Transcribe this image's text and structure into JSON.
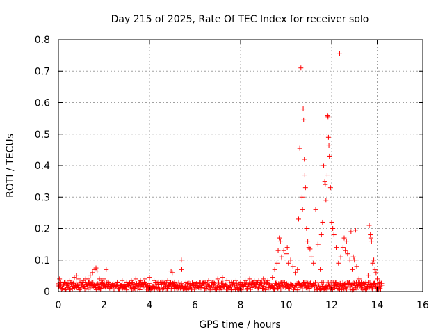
{
  "chart_data": {
    "type": "scatter",
    "title": "Day 215 of 2025, Rate Of TEC Index for receiver solo",
    "xlabel": "GPS time / hours",
    "ylabel": "ROTI / TECUs",
    "xlim": [
      0,
      16
    ],
    "ylim": [
      0,
      0.8
    ],
    "xticks": [
      0,
      2,
      4,
      6,
      8,
      10,
      12,
      14,
      16
    ],
    "yticks": [
      0,
      0.1,
      0.2,
      0.3,
      0.4,
      0.5,
      0.6,
      0.7,
      0.8
    ],
    "xtick_labels": [
      "0",
      "2",
      "4",
      "6",
      "8",
      "10",
      "12",
      "14",
      "16"
    ],
    "ytick_labels": [
      "0",
      "0.1",
      "0.2",
      "0.3",
      "0.4",
      "0.5",
      "0.6",
      "0.7",
      "0.8"
    ],
    "grid": true,
    "marker": "+",
    "color": "#ff0000",
    "series": [
      {
        "name": "ROTI",
        "points": [
          [
            0.0,
            0.02
          ],
          [
            0.05,
            0.04
          ],
          [
            0.1,
            0.03
          ],
          [
            0.2,
            0.02
          ],
          [
            0.3,
            0.03
          ],
          [
            0.4,
            0.02
          ],
          [
            0.5,
            0.035
          ],
          [
            0.6,
            0.03
          ],
          [
            0.7,
            0.045
          ],
          [
            0.8,
            0.05
          ],
          [
            0.9,
            0.04
          ],
          [
            1.0,
            0.03
          ],
          [
            1.1,
            0.035
          ],
          [
            1.2,
            0.04
          ],
          [
            1.3,
            0.04
          ],
          [
            1.4,
            0.05
          ],
          [
            1.5,
            0.06
          ],
          [
            1.6,
            0.07
          ],
          [
            1.65,
            0.075
          ],
          [
            1.7,
            0.065
          ],
          [
            1.8,
            0.04
          ],
          [
            1.9,
            0.035
          ],
          [
            2.0,
            0.04
          ],
          [
            2.1,
            0.07
          ],
          [
            2.2,
            0.03
          ],
          [
            2.4,
            0.025
          ],
          [
            2.6,
            0.03
          ],
          [
            2.8,
            0.035
          ],
          [
            3.0,
            0.03
          ],
          [
            3.2,
            0.035
          ],
          [
            3.4,
            0.04
          ],
          [
            3.6,
            0.035
          ],
          [
            3.8,
            0.04
          ],
          [
            4.0,
            0.045
          ],
          [
            4.2,
            0.035
          ],
          [
            4.4,
            0.03
          ],
          [
            4.6,
            0.03
          ],
          [
            4.8,
            0.035
          ],
          [
            4.95,
            0.065
          ],
          [
            5.0,
            0.06
          ],
          [
            5.1,
            0.03
          ],
          [
            5.4,
            0.1
          ],
          [
            5.42,
            0.07
          ],
          [
            5.6,
            0.03
          ],
          [
            5.8,
            0.025
          ],
          [
            6.0,
            0.03
          ],
          [
            6.2,
            0.025
          ],
          [
            6.4,
            0.03
          ],
          [
            6.6,
            0.035
          ],
          [
            6.8,
            0.03
          ],
          [
            7.0,
            0.04
          ],
          [
            7.2,
            0.045
          ],
          [
            7.4,
            0.035
          ],
          [
            7.6,
            0.03
          ],
          [
            7.8,
            0.035
          ],
          [
            8.0,
            0.03
          ],
          [
            8.2,
            0.035
          ],
          [
            8.4,
            0.04
          ],
          [
            8.6,
            0.035
          ],
          [
            8.8,
            0.035
          ],
          [
            9.0,
            0.04
          ],
          [
            9.2,
            0.035
          ],
          [
            9.4,
            0.045
          ],
          [
            9.5,
            0.07
          ],
          [
            9.6,
            0.09
          ],
          [
            9.65,
            0.13
          ],
          [
            9.7,
            0.17
          ],
          [
            9.75,
            0.16
          ],
          [
            9.8,
            0.11
          ],
          [
            9.9,
            0.13
          ],
          [
            10.0,
            0.12
          ],
          [
            10.05,
            0.14
          ],
          [
            10.1,
            0.09
          ],
          [
            10.2,
            0.1
          ],
          [
            10.3,
            0.08
          ],
          [
            10.4,
            0.06
          ],
          [
            10.5,
            0.07
          ],
          [
            10.55,
            0.23
          ],
          [
            10.6,
            0.455
          ],
          [
            10.65,
            0.71
          ],
          [
            10.7,
            0.3
          ],
          [
            10.72,
            0.26
          ],
          [
            10.75,
            0.58
          ],
          [
            10.77,
            0.545
          ],
          [
            10.8,
            0.42
          ],
          [
            10.82,
            0.37
          ],
          [
            10.85,
            0.33
          ],
          [
            10.9,
            0.2
          ],
          [
            10.95,
            0.16
          ],
          [
            11.0,
            0.14
          ],
          [
            11.05,
            0.135
          ],
          [
            11.1,
            0.11
          ],
          [
            11.2,
            0.09
          ],
          [
            11.3,
            0.26
          ],
          [
            11.4,
            0.15
          ],
          [
            11.5,
            0.07
          ],
          [
            11.55,
            0.18
          ],
          [
            11.6,
            0.22
          ],
          [
            11.65,
            0.4
          ],
          [
            11.7,
            0.35
          ],
          [
            11.72,
            0.34
          ],
          [
            11.75,
            0.29
          ],
          [
            11.8,
            0.37
          ],
          [
            11.82,
            0.56
          ],
          [
            11.84,
            0.555
          ],
          [
            11.86,
            0.49
          ],
          [
            11.88,
            0.465
          ],
          [
            11.9,
            0.43
          ],
          [
            11.95,
            0.33
          ],
          [
            12.0,
            0.22
          ],
          [
            12.05,
            0.2
          ],
          [
            12.1,
            0.18
          ],
          [
            12.2,
            0.14
          ],
          [
            12.3,
            0.09
          ],
          [
            12.35,
            0.755
          ],
          [
            12.4,
            0.11
          ],
          [
            12.5,
            0.14
          ],
          [
            12.55,
            0.17
          ],
          [
            12.6,
            0.13
          ],
          [
            12.65,
            0.16
          ],
          [
            12.7,
            0.12
          ],
          [
            12.8,
            0.1
          ],
          [
            12.85,
            0.19
          ],
          [
            12.9,
            0.07
          ],
          [
            12.95,
            0.11
          ],
          [
            13.0,
            0.1
          ],
          [
            13.05,
            0.195
          ],
          [
            13.1,
            0.08
          ],
          [
            13.2,
            0.04
          ],
          [
            13.3,
            0.03
          ],
          [
            13.5,
            0.03
          ],
          [
            13.6,
            0.05
          ],
          [
            13.65,
            0.21
          ],
          [
            13.7,
            0.18
          ],
          [
            13.72,
            0.17
          ],
          [
            13.75,
            0.16
          ],
          [
            13.8,
            0.09
          ],
          [
            13.85,
            0.1
          ],
          [
            13.9,
            0.07
          ],
          [
            13.95,
            0.06
          ],
          [
            14.0,
            0.04
          ],
          [
            14.1,
            0.03
          ],
          [
            14.2,
            0.02
          ]
        ]
      }
    ],
    "band_points": 600
  }
}
